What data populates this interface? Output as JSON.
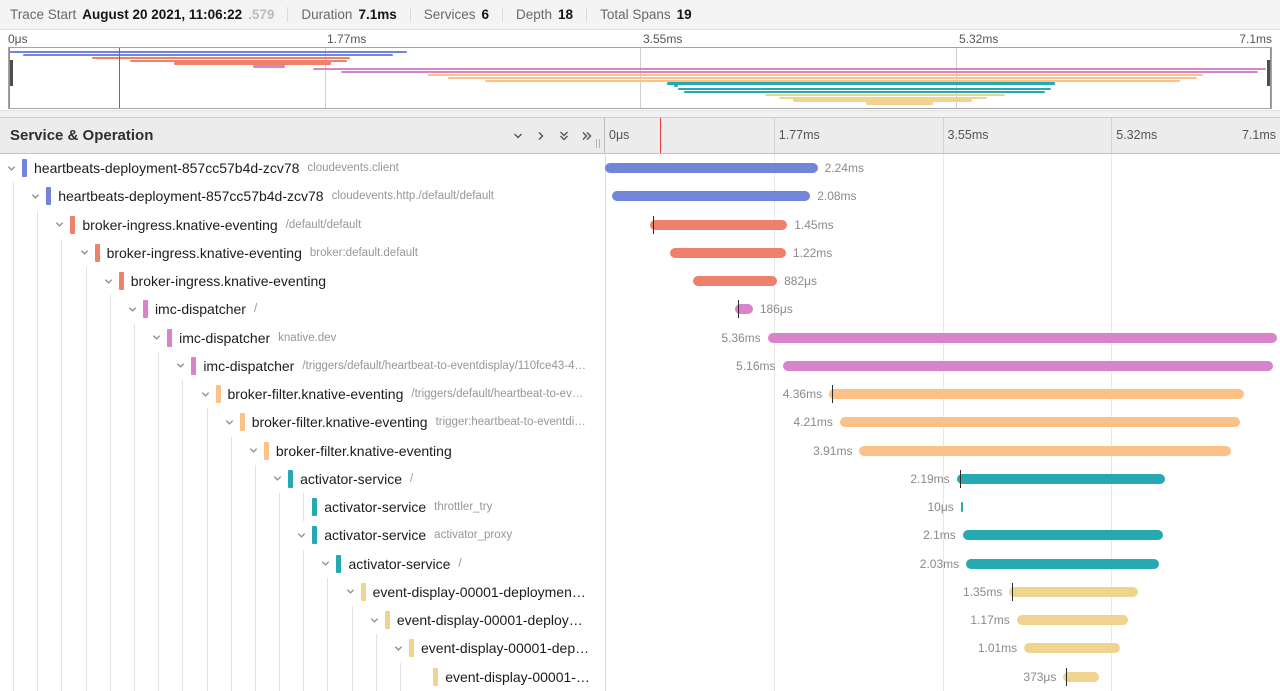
{
  "title_bar": {
    "items": [
      {
        "label": "Trace Start",
        "value": "August 20 2021, 11:06:22",
        "muted_suffix": ".579"
      },
      {
        "label": "Duration",
        "value": "7.1ms"
      },
      {
        "label": "Services",
        "value": "6"
      },
      {
        "label": "Depth",
        "value": "18"
      },
      {
        "label": "Total Spans",
        "value": "19"
      }
    ]
  },
  "left_header": {
    "title": "Service & Operation",
    "controls": [
      {
        "name": "collapse-one-icon"
      },
      {
        "name": "expand-one-icon"
      },
      {
        "name": "collapse-all-icon"
      },
      {
        "name": "expand-all-icon"
      }
    ]
  },
  "timeline": {
    "ticks": [
      "0μs",
      "1.77ms",
      "3.55ms",
      "5.32ms",
      "7.1ms"
    ],
    "tick_pcts": [
      0,
      25,
      50,
      75,
      100
    ],
    "cursor_pct": 8.2,
    "minimap_cursor_pct": 8.7
  },
  "palette": {
    "blue": "#7285D8",
    "salmon": "#EF806C",
    "pink": "#D983CB",
    "peach": "#FBC187",
    "teal": "#27A9B1",
    "yellow": "#EFD38F",
    "cursor_red": "#E23B3B"
  },
  "spans": [
    {
      "depth": 0,
      "service": "heartbeats-deployment-857cc57b4d-zcv78",
      "operation": "cloudevents.client",
      "color": "blue",
      "start_pct": 0.0,
      "width_pct": 31.5,
      "duration": "2.24ms",
      "label_side": "right",
      "has_children": true,
      "log_tick": false,
      "sibling_guide": false
    },
    {
      "depth": 1,
      "service": "heartbeats-deployment-857cc57b4d-zcv78",
      "operation": "cloudevents.http./default/default",
      "color": "blue",
      "start_pct": 1.1,
      "width_pct": 29.3,
      "duration": "2.08ms",
      "label_side": "right",
      "has_children": true,
      "log_tick": false,
      "sibling_guide": false
    },
    {
      "depth": 2,
      "service": "broker-ingress.knative-eventing",
      "operation": "/default/default",
      "color": "salmon",
      "start_pct": 6.6,
      "width_pct": 20.4,
      "duration": "1.45ms",
      "label_side": "right",
      "has_children": true,
      "log_tick": true,
      "sibling_guide": false
    },
    {
      "depth": 3,
      "service": "broker-ingress.knative-eventing",
      "operation": "broker:default.default",
      "color": "salmon",
      "start_pct": 9.6,
      "width_pct": 17.2,
      "duration": "1.22ms",
      "label_side": "right",
      "has_children": true,
      "log_tick": false,
      "sibling_guide": false
    },
    {
      "depth": 4,
      "service": "broker-ingress.knative-eventing",
      "operation": "",
      "color": "salmon",
      "start_pct": 13.1,
      "width_pct": 12.4,
      "duration": "882μs",
      "label_side": "right",
      "has_children": true,
      "log_tick": false,
      "sibling_guide": false
    },
    {
      "depth": 5,
      "service": "imc-dispatcher",
      "operation": "/",
      "color": "pink",
      "start_pct": 19.3,
      "width_pct": 2.6,
      "duration": "186μs",
      "label_side": "right",
      "has_children": true,
      "log_tick": true,
      "sibling_guide": false
    },
    {
      "depth": 6,
      "service": "imc-dispatcher",
      "operation": "knative.dev",
      "color": "pink",
      "start_pct": 24.1,
      "width_pct": 75.5,
      "duration": "5.36ms",
      "label_side": "left",
      "has_children": true,
      "log_tick": false,
      "sibling_guide": false
    },
    {
      "depth": 7,
      "service": "imc-dispatcher",
      "operation": "/triggers/default/heartbeat-to-eventdisplay/110fce43-4…",
      "color": "pink",
      "start_pct": 26.3,
      "width_pct": 72.7,
      "duration": "5.16ms",
      "label_side": "left",
      "has_children": true,
      "log_tick": false,
      "sibling_guide": false
    },
    {
      "depth": 8,
      "service": "broker-filter.knative-eventing",
      "operation": "/triggers/default/heartbeat-to-ev…",
      "color": "peach",
      "start_pct": 33.2,
      "width_pct": 61.4,
      "duration": "4.36ms",
      "label_side": "left",
      "has_children": true,
      "log_tick": true,
      "sibling_guide": false
    },
    {
      "depth": 9,
      "service": "broker-filter.knative-eventing",
      "operation": "trigger:heartbeat-to-eventdi…",
      "color": "peach",
      "start_pct": 34.8,
      "width_pct": 59.3,
      "duration": "4.21ms",
      "label_side": "left",
      "has_children": true,
      "log_tick": false,
      "sibling_guide": false
    },
    {
      "depth": 10,
      "service": "broker-filter.knative-eventing",
      "operation": "",
      "color": "peach",
      "start_pct": 37.7,
      "width_pct": 55.1,
      "duration": "3.91ms",
      "label_side": "left",
      "has_children": true,
      "log_tick": false,
      "sibling_guide": false
    },
    {
      "depth": 11,
      "service": "activator-service",
      "operation": "/",
      "color": "teal",
      "start_pct": 52.1,
      "width_pct": 30.8,
      "duration": "2.19ms",
      "label_side": "left",
      "has_children": true,
      "log_tick": true,
      "sibling_guide": false
    },
    {
      "depth": 12,
      "service": "activator-service",
      "operation": "throttler_try",
      "color": "teal",
      "start_pct": 52.7,
      "width_pct": 0.3,
      "duration": "10μs",
      "label_side": "left",
      "has_children": false,
      "log_tick": false,
      "sibling_guide": true
    },
    {
      "depth": 12,
      "service": "activator-service",
      "operation": "activator_proxy",
      "color": "teal",
      "start_pct": 53.0,
      "width_pct": 29.6,
      "duration": "2.1ms",
      "label_side": "left",
      "has_children": true,
      "log_tick": false,
      "sibling_guide": false
    },
    {
      "depth": 13,
      "service": "activator-service",
      "operation": "/",
      "color": "teal",
      "start_pct": 53.5,
      "width_pct": 28.6,
      "duration": "2.03ms",
      "label_side": "left",
      "has_children": true,
      "log_tick": false,
      "sibling_guide": false
    },
    {
      "depth": 14,
      "service": "event-display-00001-deploymen…",
      "operation": "",
      "color": "yellow",
      "start_pct": 59.9,
      "width_pct": 19.0,
      "duration": "1.35ms",
      "label_side": "left",
      "has_children": true,
      "log_tick": true,
      "sibling_guide": false
    },
    {
      "depth": 15,
      "service": "event-display-00001-deploy…",
      "operation": "",
      "color": "yellow",
      "start_pct": 61.0,
      "width_pct": 16.5,
      "duration": "1.17ms",
      "label_side": "left",
      "has_children": true,
      "log_tick": false,
      "sibling_guide": false
    },
    {
      "depth": 16,
      "service": "event-display-00001-dep…",
      "operation": "",
      "color": "yellow",
      "start_pct": 62.1,
      "width_pct": 14.2,
      "duration": "1.01ms",
      "label_side": "left",
      "has_children": true,
      "log_tick": false,
      "sibling_guide": false
    },
    {
      "depth": 17,
      "service": "event-display-00001-…",
      "operation": "",
      "color": "yellow",
      "start_pct": 67.9,
      "width_pct": 5.3,
      "duration": "373μs",
      "label_side": "left",
      "has_children": false,
      "log_tick": true,
      "sibling_guide": false
    }
  ]
}
